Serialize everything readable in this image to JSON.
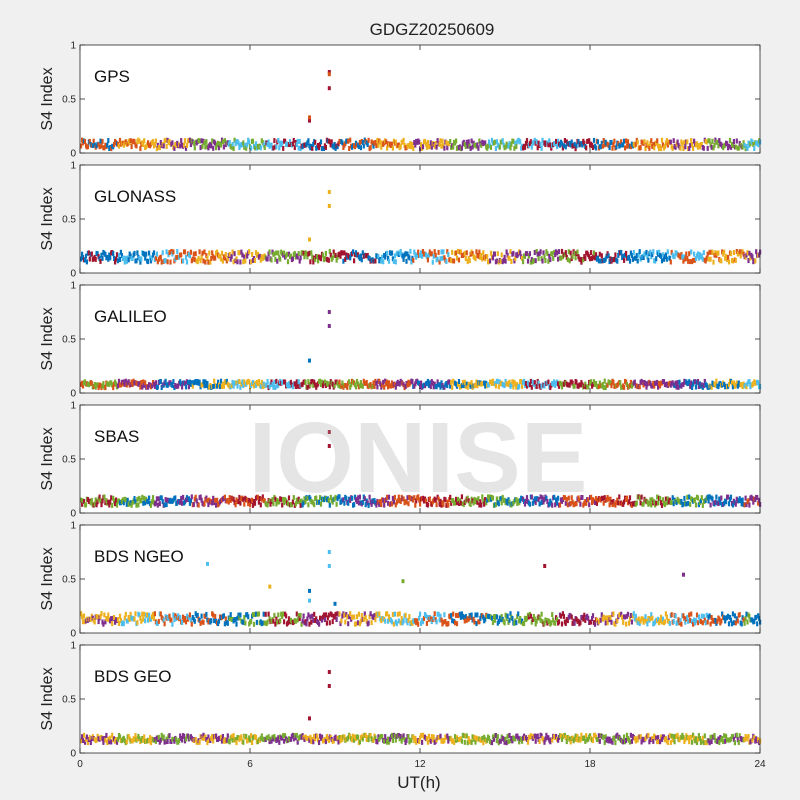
{
  "figure": {
    "title": "GDGZ20250609",
    "xlabel": "UT(h)",
    "watermark": "IONISE",
    "background": "#f0f0f0",
    "axes_background": "#ffffff",
    "series_colors": [
      "#0072bd",
      "#d95319",
      "#edb120",
      "#7e2f8e",
      "#77ac30",
      "#4dbeee",
      "#a2142f"
    ]
  },
  "chart_data": [
    {
      "type": "scatter",
      "label": "GPS",
      "ylabel": "S4 Index",
      "xlim": [
        0,
        24
      ],
      "ylim": [
        0,
        1
      ],
      "xticks": [],
      "yticks": [
        0,
        0.5,
        1
      ],
      "baseline": 0.08,
      "jitter": 0.04,
      "colors": [
        0,
        1,
        2,
        3,
        4,
        5,
        6
      ],
      "outliers": [
        {
          "x": 8.1,
          "y": 0.3,
          "color": 6
        },
        {
          "x": 8.1,
          "y": 0.33,
          "color": 1
        },
        {
          "x": 8.8,
          "y": 0.6,
          "color": 6
        },
        {
          "x": 8.8,
          "y": 0.75,
          "color": 6
        },
        {
          "x": 8.8,
          "y": 0.73,
          "color": 1
        }
      ]
    },
    {
      "type": "scatter",
      "label": "GLONASS",
      "ylabel": "S4 Index",
      "xlim": [
        0,
        24
      ],
      "ylim": [
        0,
        1
      ],
      "xticks": [],
      "yticks": [
        0,
        0.5,
        1
      ],
      "baseline": 0.15,
      "jitter": 0.05,
      "colors": [
        6,
        0,
        5,
        1,
        2,
        3,
        4
      ],
      "outliers": [
        {
          "x": 8.1,
          "y": 0.31,
          "color": 2
        },
        {
          "x": 8.8,
          "y": 0.62,
          "color": 2
        },
        {
          "x": 8.8,
          "y": 0.75,
          "color": 2
        }
      ]
    },
    {
      "type": "scatter",
      "label": "GALILEO",
      "ylabel": "S4 Index",
      "xlim": [
        0,
        24
      ],
      "ylim": [
        0,
        1
      ],
      "xticks": [],
      "yticks": [
        0,
        0.5,
        1
      ],
      "baseline": 0.08,
      "jitter": 0.03,
      "colors": [
        4,
        1,
        3,
        0,
        2,
        5,
        6
      ],
      "outliers": [
        {
          "x": 8.1,
          "y": 0.3,
          "color": 0
        },
        {
          "x": 8.8,
          "y": 0.62,
          "color": 3
        },
        {
          "x": 8.8,
          "y": 0.75,
          "color": 3
        }
      ]
    },
    {
      "type": "scatter",
      "label": "SBAS",
      "ylabel": "S4 Index",
      "xlim": [
        0,
        24
      ],
      "ylim": [
        0,
        1
      ],
      "xticks": [],
      "yticks": [
        0,
        0.5,
        1
      ],
      "baseline": 0.11,
      "jitter": 0.04,
      "colors": [
        6,
        4,
        0,
        3,
        1
      ],
      "outliers": [
        {
          "x": 8.8,
          "y": 0.62,
          "color": 6
        },
        {
          "x": 8.8,
          "y": 0.75,
          "color": 6
        }
      ]
    },
    {
      "type": "scatter",
      "label": "BDS NGEO",
      "ylabel": "S4 Index",
      "xlim": [
        0,
        24
      ],
      "ylim": [
        0,
        1
      ],
      "xticks": [],
      "yticks": [
        0,
        0.5,
        1
      ],
      "baseline": 0.13,
      "jitter": 0.05,
      "colors": [
        3,
        2,
        5,
        1,
        0,
        4,
        6
      ],
      "outliers": [
        {
          "x": 4.5,
          "y": 0.64,
          "color": 5
        },
        {
          "x": 6.7,
          "y": 0.43,
          "color": 2
        },
        {
          "x": 8.1,
          "y": 0.3,
          "color": 5
        },
        {
          "x": 8.1,
          "y": 0.39,
          "color": 0
        },
        {
          "x": 8.8,
          "y": 0.62,
          "color": 5
        },
        {
          "x": 8.8,
          "y": 0.75,
          "color": 5
        },
        {
          "x": 9.0,
          "y": 0.27,
          "color": 0
        },
        {
          "x": 11.4,
          "y": 0.48,
          "color": 4
        },
        {
          "x": 16.4,
          "y": 0.62,
          "color": 6
        },
        {
          "x": 21.3,
          "y": 0.54,
          "color": 3
        }
      ]
    },
    {
      "type": "scatter",
      "label": "BDS GEO",
      "ylabel": "S4 Index",
      "xlim": [
        0,
        24
      ],
      "ylim": [
        0,
        1
      ],
      "xticks": [
        0,
        6,
        12,
        18,
        24
      ],
      "yticks": [
        0,
        0.5,
        1
      ],
      "baseline": 0.13,
      "jitter": 0.035,
      "colors": [
        3,
        2,
        4
      ],
      "outliers": [
        {
          "x": 8.1,
          "y": 0.32,
          "color": 6
        },
        {
          "x": 8.8,
          "y": 0.62,
          "color": 6
        },
        {
          "x": 8.8,
          "y": 0.75,
          "color": 6
        }
      ]
    }
  ]
}
